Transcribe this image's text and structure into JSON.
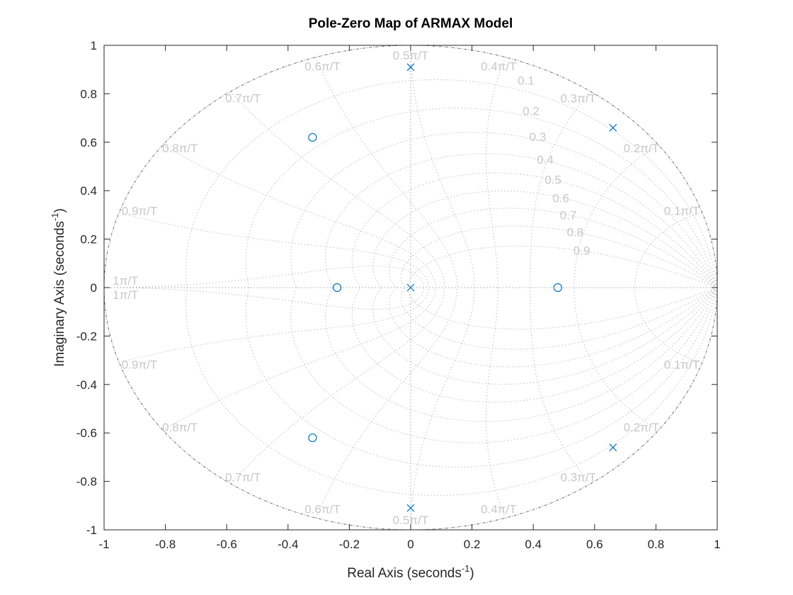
{
  "chart_data": {
    "type": "scatter",
    "title": "Pole-Zero Map of ARMAX Model",
    "xlabel": {
      "text": "Real Axis (seconds",
      "sup": "-1",
      "suffix": ")"
    },
    "ylabel": {
      "text": "Imaginary Axis (seconds",
      "sup": "-1",
      "suffix": ")"
    },
    "xlim": [
      -1,
      1
    ],
    "ylim": [
      -1,
      1
    ],
    "xticks": [
      -1,
      -0.8,
      -0.6,
      -0.4,
      -0.2,
      0,
      0.2,
      0.4,
      0.6,
      0.8,
      1
    ],
    "xtick_labels": [
      "-1",
      "-0.8",
      "-0.6",
      "-0.4",
      "-0.2",
      "0",
      "0.2",
      "0.4",
      "0.6",
      "0.8",
      "1"
    ],
    "yticks": [
      -1,
      -0.8,
      -0.6,
      -0.4,
      -0.2,
      0,
      0.2,
      0.4,
      0.6,
      0.8,
      1
    ],
    "ytick_labels": [
      "-1",
      "-0.8",
      "-0.6",
      "-0.4",
      "-0.2",
      "0",
      "0.2",
      "0.4",
      "0.6",
      "0.8",
      "1"
    ],
    "grid": "zgrid",
    "series": [
      {
        "marker": "x",
        "color": "#0072bd",
        "points": [
          {
            "x": 0,
            "y": 0.91
          },
          {
            "x": 0.66,
            "y": 0.66
          },
          {
            "x": 0,
            "y": 0
          },
          {
            "x": 0.66,
            "y": -0.66
          },
          {
            "x": 0,
            "y": -0.91
          }
        ]
      },
      {
        "marker": "o",
        "color": "#0072bd",
        "points": [
          {
            "x": -0.32,
            "y": 0.62
          },
          {
            "x": -0.24,
            "y": 0
          },
          {
            "x": 0.48,
            "y": 0
          },
          {
            "x": -0.32,
            "y": -0.62
          }
        ]
      }
    ],
    "damping_labels": [
      "0.1",
      "0.2",
      "0.3",
      "0.4",
      "0.5",
      "0.6",
      "0.7",
      "0.8",
      "0.9"
    ],
    "frequency_labels": [
      {
        "text": "0.1π/T",
        "wn": 0.1
      },
      {
        "text": "0.2π/T",
        "wn": 0.2
      },
      {
        "text": "0.3π/T",
        "wn": 0.3
      },
      {
        "text": "0.4π/T",
        "wn": 0.4
      },
      {
        "text": "0.5π/T",
        "wn": 0.5
      },
      {
        "text": "0.6π/T",
        "wn": 0.6
      },
      {
        "text": "0.7π/T",
        "wn": 0.7
      },
      {
        "text": "0.8π/T",
        "wn": 0.8
      },
      {
        "text": "0.9π/T",
        "wn": 0.9
      },
      {
        "text": "1π/T",
        "wn": 1.0
      }
    ],
    "colors": {
      "axes": "#262626",
      "grid": "#c8c8c8",
      "unit_circle": "#6e6e6e",
      "marker": "#0072bd"
    }
  }
}
